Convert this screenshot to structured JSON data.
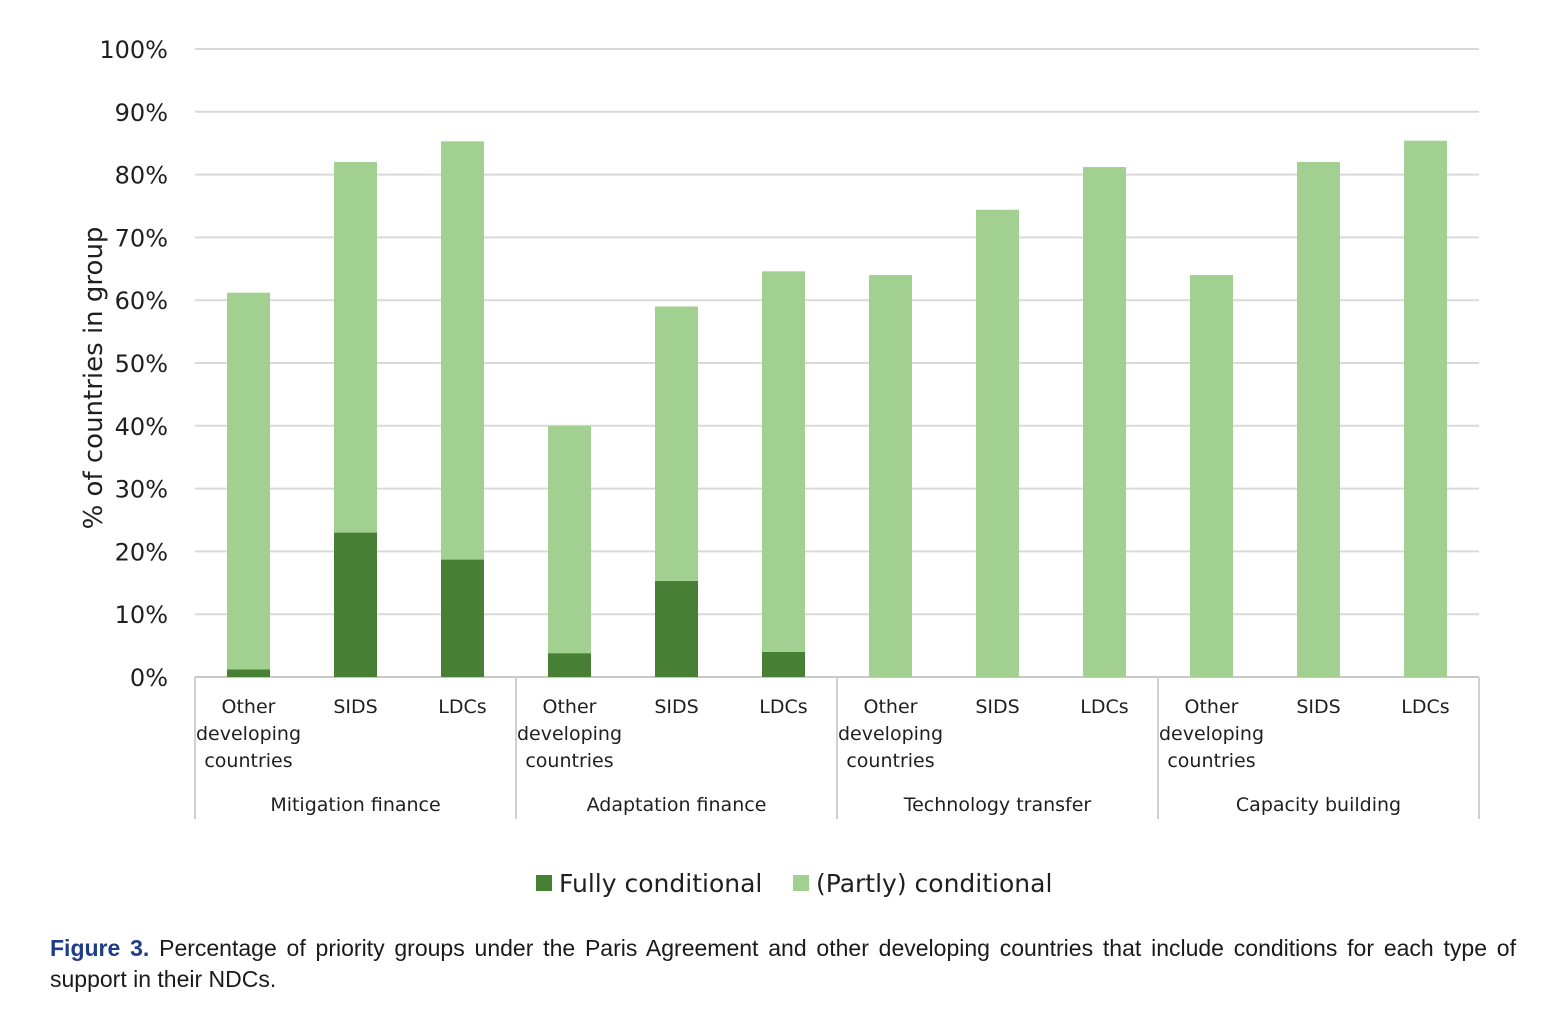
{
  "chart_data": {
    "type": "bar",
    "stacked": true,
    "ylabel": "% of countries in group",
    "ylim": [
      0,
      100
    ],
    "y_ticks": [
      "0%",
      "10%",
      "20%",
      "30%",
      "40%",
      "50%",
      "60%",
      "70%",
      "80%",
      "90%",
      "100%"
    ],
    "grid": true,
    "legend_position": "bottom",
    "groups": [
      {
        "label": "Mitigation finance",
        "categories": [
          "Other developing countries",
          "SIDS",
          "LDCs"
        ]
      },
      {
        "label": "Adaptation finance",
        "categories": [
          "Other developing countries",
          "SIDS",
          "LDCs"
        ]
      },
      {
        "label": "Technology transfer",
        "categories": [
          "Other developing countries",
          "SIDS",
          "LDCs"
        ]
      },
      {
        "label": "Capacity building",
        "categories": [
          "Other developing countries",
          "SIDS",
          "LDCs"
        ]
      }
    ],
    "series": [
      {
        "name": "Fully conditional",
        "color": "#477f35",
        "values": [
          1.2,
          23.0,
          18.7,
          3.8,
          15.3,
          4.0,
          0,
          0,
          0,
          0,
          0,
          0
        ]
      },
      {
        "name": "(Partly) conditional",
        "color": "#a2d090",
        "values": [
          60.0,
          59.0,
          66.6,
          36.2,
          43.7,
          60.6,
          64.0,
          74.4,
          81.2,
          64.0,
          82.0,
          85.4
        ]
      }
    ]
  },
  "caption": {
    "label": "Figure 3.",
    "text": " Percentage of priority groups under the Paris Agreement and other developing countries that include conditions for each type of support in their NDCs."
  }
}
